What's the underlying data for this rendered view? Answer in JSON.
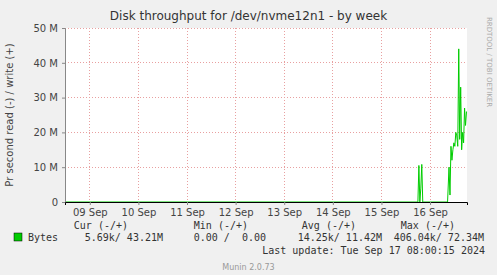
{
  "chart_data": {
    "type": "line",
    "title": "Disk throughput for /dev/nvme12n1 - by week",
    "y_label": "Pr second read (-) / write (+)",
    "x": [
      8.99,
      16.24,
      16.25,
      16.27,
      16.29,
      16.31,
      16.33,
      16.35,
      16.37,
      16.86,
      16.89,
      16.91,
      16.93,
      16.95,
      16.97,
      16.99,
      17.01,
      17.03,
      17.05,
      17.07,
      17.09,
      17.11,
      17.13,
      17.15,
      17.17,
      17.19,
      17.21,
      17.23,
      17.25
    ],
    "series": [
      {
        "name": "Bytes",
        "color": "#00cc00",
        "values": [
          0,
          0,
          0,
          10500000,
          0,
          4000000,
          10800000,
          0,
          0,
          0,
          10000000,
          2000000,
          16000000,
          12000000,
          15000000,
          17000000,
          16000000,
          20000000,
          19000000,
          16000000,
          44000000,
          18000000,
          33000000,
          15000000,
          20000000,
          17000000,
          27000000,
          22000000,
          26000000
        ]
      }
    ],
    "xlim": [
      8.99,
      17.26
    ],
    "xticks": [
      {
        "value": 9.5,
        "label": "09 Sep"
      },
      {
        "value": 10.5,
        "label": "10 Sep"
      },
      {
        "value": 11.5,
        "label": "11 Sep"
      },
      {
        "value": 12.5,
        "label": "12 Sep"
      },
      {
        "value": 13.5,
        "label": "13 Sep"
      },
      {
        "value": 14.5,
        "label": "14 Sep"
      },
      {
        "value": 15.5,
        "label": "15 Sep"
      },
      {
        "value": 16.5,
        "label": "16 Sep"
      }
    ],
    "ylim": [
      0,
      50000000
    ],
    "yticks": [
      0,
      {
        "value": 10000000,
        "label": "10 M"
      },
      {
        "value": 20000000,
        "label": "20 M"
      },
      {
        "value": 30000000,
        "label": "30 M"
      },
      {
        "value": 40000000,
        "label": "40 M"
      },
      {
        "value": 50000000,
        "label": "50 M"
      }
    ],
    "grid": true,
    "stats": {
      "headers": [
        "Cur (-/+)",
        "Min (-/+)",
        "Avg (-/+)",
        "Max (-/+)"
      ],
      "values": [
        "5.69k/ 43.21M",
        "0.00 /  0.00",
        "14.25k/ 11.42M",
        "406.04k/ 72.34M"
      ]
    },
    "last_update": "Last update: Tue Sep 17 08:00:15 2024",
    "footer": "Munin 2.0.73",
    "watermark": "RRDTOOL / TOBI OETIKER"
  }
}
